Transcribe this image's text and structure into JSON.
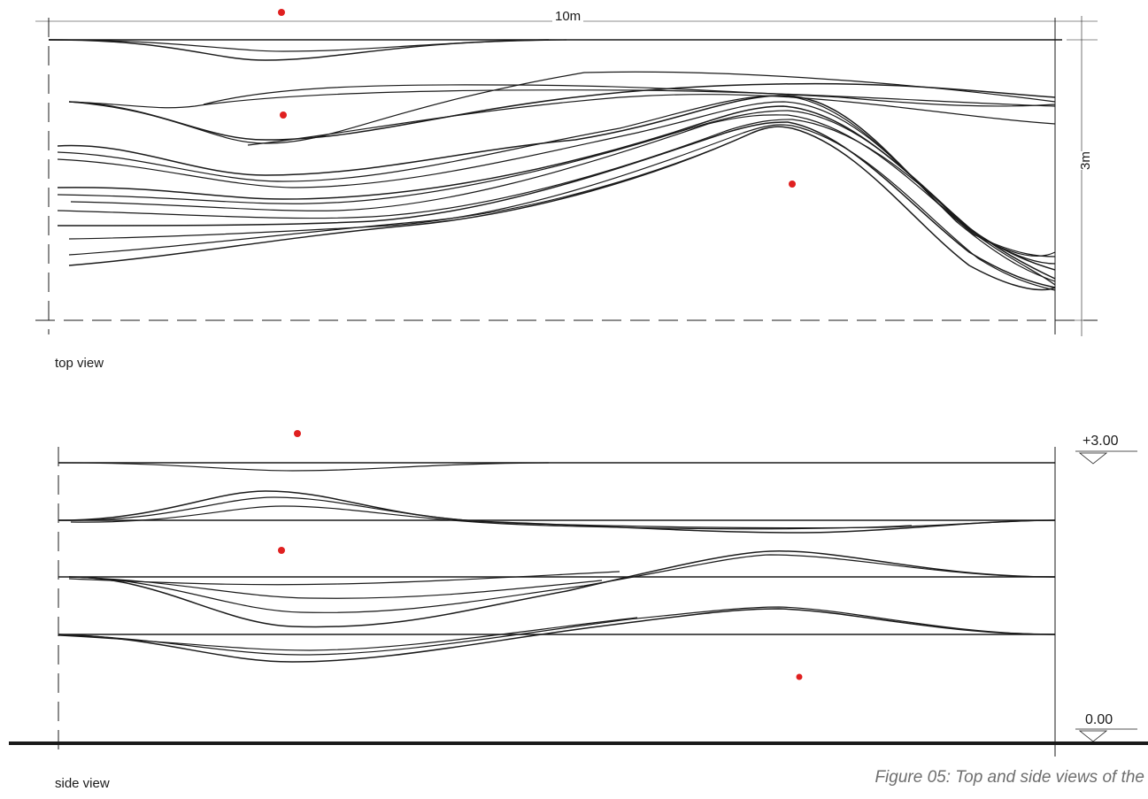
{
  "top_view": {
    "label": "top view",
    "dimension_length": "10m",
    "dimension_width": "3m"
  },
  "side_view": {
    "label": "side view",
    "level_top": "+3.00",
    "level_bottom": "0.00"
  },
  "caption": "Figure 05: Top and side views of the",
  "colors": {
    "line": "#1a1a1a",
    "marker": "#e02020",
    "caption": "#6e6e6e"
  }
}
